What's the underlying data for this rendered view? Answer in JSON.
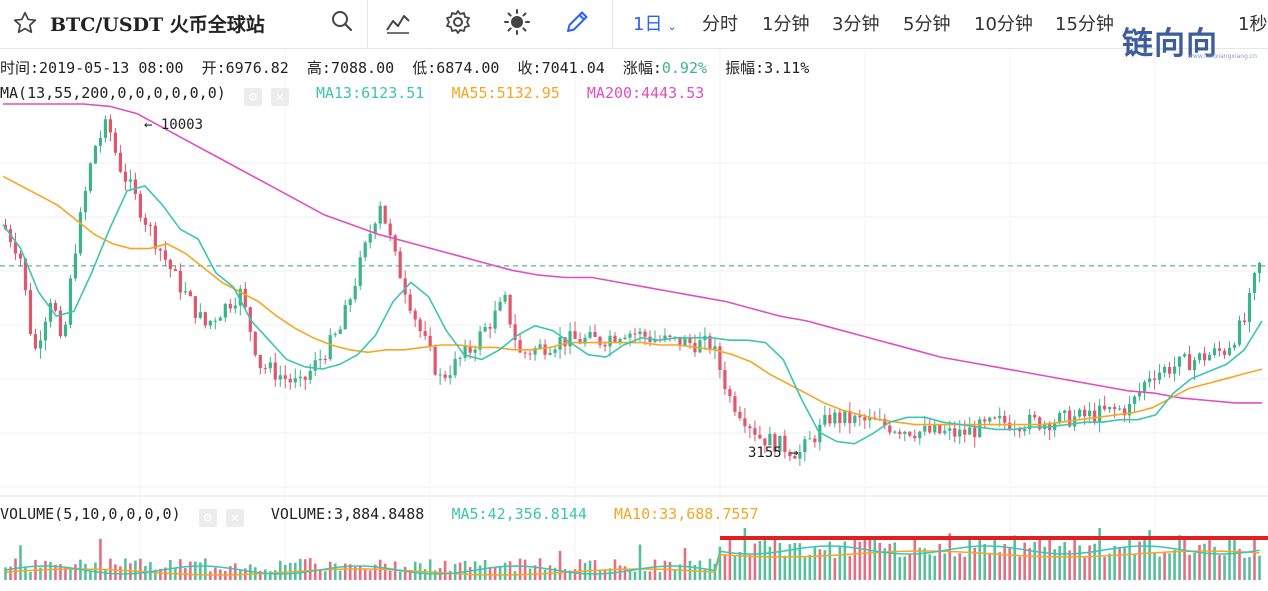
{
  "toolbar": {
    "symbol": "BTC/USDT 火币全球站",
    "intervals": [
      {
        "label": "1日",
        "active": true
      },
      {
        "label": "分时",
        "active": false
      },
      {
        "label": "1分钟",
        "active": false
      },
      {
        "label": "3分钟",
        "active": false
      },
      {
        "label": "5分钟",
        "active": false
      },
      {
        "label": "10分钟",
        "active": false
      },
      {
        "label": "15分钟",
        "active": false
      },
      {
        "label": "1秒",
        "active": false
      }
    ],
    "icons": [
      "star-icon",
      "search-icon",
      "indicator-chart-icon",
      "gear-icon",
      "sun-icon",
      "pencil-icon"
    ]
  },
  "watermark": {
    "text": "链向向",
    "sub": "www.lianxiangxiang.cn"
  },
  "ohlc": {
    "time_label": "时间:",
    "time": "2019-05-13 08:00",
    "open_label": "开:",
    "open": "6976.82",
    "high_label": "高:",
    "high": "7088.00",
    "low_label": "低:",
    "low": "6874.00",
    "close_label": "收:",
    "close": "7041.04",
    "change_label": "涨幅:",
    "change": "0.92%",
    "amp_label": "振幅:",
    "amp": "3.11%"
  },
  "ma_legend": {
    "name": "MA(13,55,200,0,0,0,0,0,0)",
    "ma13": "MA13:6123.51",
    "ma55": "MA55:5132.95",
    "ma200": "MA200:4443.53"
  },
  "vol_legend": {
    "name": "VOLUME(5,10,0,0,0,0)",
    "volume": "VOLUME:3,884.8488",
    "ma5": "MA5:42,356.8144",
    "ma10": "MA10:33,688.7557"
  },
  "colors": {
    "up": "#3bb38b",
    "down": "#e0566b",
    "ma13": "#3cc5b0",
    "ma55": "#f5a623",
    "ma200": "#e14fbf",
    "accent": "#2962ff",
    "marker": "#e02020",
    "change": "#3bb38b"
  },
  "chart_data": {
    "type": "candlestick",
    "price_range": [
      2600,
      10400
    ],
    "current_price": 7041.04,
    "annotations": [
      {
        "label": "← 10003",
        "value": 10003
      },
      {
        "label": "3155 →",
        "value": 3155
      }
    ],
    "ma13_values": [
      7900,
      7400,
      6500,
      6000,
      6100,
      6900,
      7800,
      8600,
      8700,
      8300,
      7800,
      7600,
      6900,
      6600,
      5900,
      5500,
      5100,
      4950,
      4900,
      5000,
      5200,
      5600,
      6300,
      6700,
      6400,
      5700,
      5200,
      5100,
      5300,
      5600,
      5800,
      5700,
      5450,
      5200,
      5150,
      5400,
      5550,
      5500,
      5550,
      5550,
      5550,
      5500,
      5500,
      5450,
      5100,
      4300,
      3600,
      3400,
      3350,
      3550,
      3800,
      3900,
      3900,
      3800,
      3750,
      3700,
      3650,
      3650,
      3700,
      3700,
      3750,
      3800,
      3800,
      3850,
      3850,
      3950,
      4400,
      4700,
      4850,
      5000,
      5300,
      5900
    ],
    "ma55_values": [
      8900,
      8700,
      8500,
      8300,
      8000,
      7700,
      7500,
      7400,
      7400,
      7500,
      7300,
      7000,
      6700,
      6500,
      6300,
      6000,
      5750,
      5550,
      5400,
      5300,
      5250,
      5300,
      5300,
      5350,
      5400,
      5400,
      5350,
      5350,
      5300,
      5300,
      5350,
      5450,
      5450,
      5450,
      5450,
      5450,
      5400,
      5400,
      5350,
      5300,
      5200,
      5050,
      4800,
      4600,
      4400,
      4200,
      4050,
      3950,
      3850,
      3800,
      3750,
      3750,
      3750,
      3750,
      3750,
      3750,
      3750,
      3750,
      3800,
      3850,
      3900,
      3950,
      4000,
      4100,
      4300,
      4500,
      4600,
      4700,
      4800,
      4900
    ],
    "ma200_values": [
      10400,
      10400,
      10400,
      10400,
      10350,
      10200,
      9900,
      9600,
      9300,
      9000,
      8700,
      8400,
      8100,
      7900,
      7700,
      7550,
      7400,
      7250,
      7100,
      6950,
      6850,
      6800,
      6800,
      6700,
      6600,
      6500,
      6400,
      6300,
      6150,
      6000,
      5900,
      5750,
      5600,
      5450,
      5300,
      5150,
      5050,
      4950,
      4850,
      4750,
      4650,
      4550,
      4450,
      4400,
      4300,
      4250,
      4200,
      4200
    ],
    "volume_ma5_last": 42356.8144,
    "volume_ma10_last": 33688.7557
  }
}
